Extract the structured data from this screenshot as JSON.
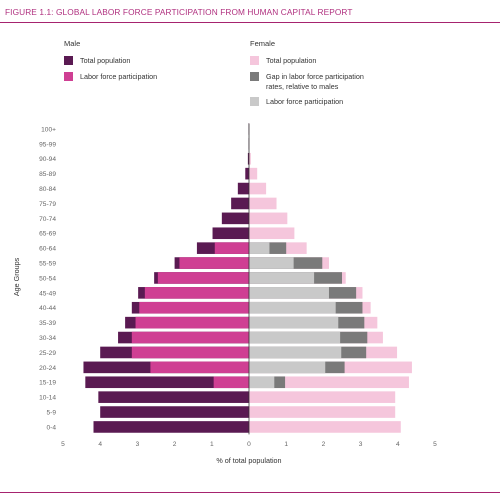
{
  "figure_title": "FIGURE 1.1: GLOBAL LABOR FORCE PARTICIPATION FROM HUMAN CAPITAL REPORT",
  "colors": {
    "male_total": "#5a1a52",
    "male_labor": "#cf3f93",
    "female_total": "#f5c6dc",
    "female_gap": "#7a7a7a",
    "female_labor": "#c9c9c9",
    "rule": "#a6236f",
    "title": "#b0307f"
  },
  "legend": {
    "male_heading": "Male",
    "male_items": [
      "Total population",
      "Labor force participation"
    ],
    "female_heading": "Female",
    "female_items": [
      "Total population",
      "Gap in labor force participation",
      "rates, relative to males",
      "Labor force participation"
    ]
  },
  "chart_data": {
    "type": "bar",
    "orientation": "horizontal-population-pyramid",
    "xlabel": "% of total population",
    "ylabel": "Age Groups",
    "xlim": [
      -5,
      5
    ],
    "x_tick_labels": [
      "5",
      "4",
      "3",
      "2",
      "1",
      "0",
      "1",
      "2",
      "3",
      "4",
      "5"
    ],
    "categories": [
      "100+",
      "95-99",
      "90-94",
      "85-89",
      "80-84",
      "75-79",
      "70-74",
      "65-69",
      "60-64",
      "55-59",
      "50-54",
      "45-49",
      "40-44",
      "35-39",
      "30-34",
      "25-29",
      "20-24",
      "15-19",
      "10-14",
      "5-9",
      "0-4"
    ],
    "series": [
      {
        "name": "Total population",
        "side": "male",
        "values": [
          0.01,
          0.01,
          0.03,
          0.1,
          0.3,
          0.48,
          0.73,
          0.98,
          1.4,
          2.0,
          2.55,
          2.98,
          3.15,
          3.33,
          3.52,
          4.0,
          4.45,
          4.4,
          4.05,
          4.0,
          4.18
        ]
      },
      {
        "name": "Labor force participation",
        "side": "male",
        "values": [
          0,
          0,
          0,
          0,
          0,
          0,
          0,
          0,
          0.92,
          1.87,
          2.45,
          2.8,
          2.95,
          3.05,
          3.15,
          3.15,
          2.65,
          0.95,
          0,
          0,
          0
        ]
      },
      {
        "name": "Total population",
        "side": "female",
        "values": [
          0.01,
          0.01,
          0.05,
          0.22,
          0.46,
          0.74,
          1.03,
          1.22,
          1.55,
          2.15,
          2.6,
          3.05,
          3.27,
          3.45,
          3.6,
          3.98,
          4.38,
          4.3,
          3.93,
          3.93,
          4.08
        ]
      },
      {
        "name": "Gap in labor force participation rates, relative to males",
        "side": "female",
        "values": [
          0,
          0,
          0,
          0,
          0,
          0,
          0,
          0,
          1.0,
          1.97,
          2.5,
          2.88,
          3.05,
          3.1,
          3.18,
          3.15,
          2.57,
          0.97,
          0,
          0,
          0
        ]
      },
      {
        "name": "Labor force participation",
        "side": "female",
        "values": [
          0,
          0,
          0,
          0,
          0,
          0,
          0,
          0,
          0.55,
          1.2,
          1.75,
          2.15,
          2.33,
          2.4,
          2.45,
          2.48,
          2.05,
          0.68,
          0,
          0,
          0
        ]
      }
    ],
    "grid": false,
    "legend_placement": "top"
  }
}
